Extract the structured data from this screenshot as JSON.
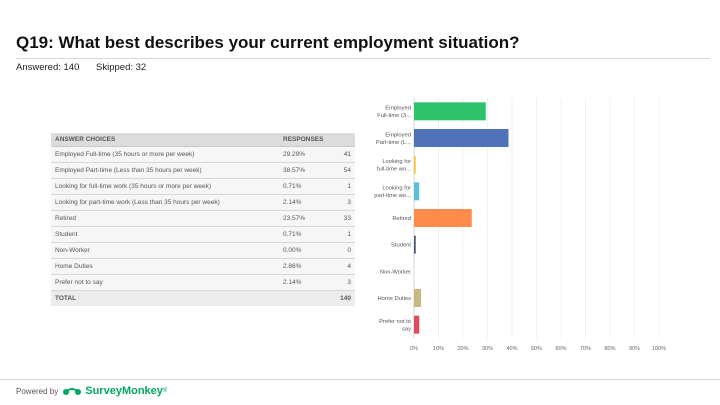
{
  "question": {
    "title": "Q19: What best describes your current employment situation?",
    "answered": "Answered: 140",
    "skipped": "Skipped: 32"
  },
  "table": {
    "headers": {
      "choices": "ANSWER CHOICES",
      "responses": "RESPONSES"
    },
    "rows": [
      {
        "label": "Employed Full-time (35 hours or more per week)",
        "pct": "29.29%",
        "count": "41"
      },
      {
        "label": "Employed Part-time (Less than 35 hours per week)",
        "pct": "38.57%",
        "count": "54"
      },
      {
        "label": "Looking for full-time work (35 hours or more per week)",
        "pct": "0.71%",
        "count": "1"
      },
      {
        "label": "Looking for part-time work (Less than 35 hours per week)",
        "pct": "2.14%",
        "count": "3"
      },
      {
        "label": "Retired",
        "pct": "23.57%",
        "count": "33"
      },
      {
        "label": "Student",
        "pct": "0.71%",
        "count": "1"
      },
      {
        "label": "Non-Worker",
        "pct": "0.00%",
        "count": "0"
      },
      {
        "label": "Home Duties",
        "pct": "2.86%",
        "count": "4"
      },
      {
        "label": "Prefer not to say",
        "pct": "2.14%",
        "count": "3"
      }
    ],
    "total_label": "TOTAL",
    "total_count": "140"
  },
  "chart_data": {
    "type": "bar",
    "orientation": "horizontal",
    "categories": [
      [
        "Employed",
        "Full-time (3..."
      ],
      [
        "Employed",
        "Part-time (L..."
      ],
      [
        "Looking for",
        "full-time wo..."
      ],
      [
        "Looking for",
        "part-time wo..."
      ],
      [
        "Retired"
      ],
      [
        "Student"
      ],
      [
        "Non-Worker"
      ],
      [
        "Home Duties"
      ],
      [
        "Prefer not to",
        "say"
      ]
    ],
    "values": [
      29.29,
      38.57,
      0.71,
      2.14,
      23.57,
      0.71,
      0.0,
      2.86,
      2.14
    ],
    "colors": [
      "#2dc26b",
      "#4f72b8",
      "#f4c842",
      "#5bc0de",
      "#ff8c4a",
      "#4a5a70",
      "#8a8a8a",
      "#c9b882",
      "#e04a5a"
    ],
    "xlim": [
      0,
      100
    ],
    "xticks": [
      "0%",
      "10%",
      "20%",
      "30%",
      "40%",
      "50%",
      "60%",
      "70%",
      "80%",
      "90%",
      "100%"
    ],
    "grid": true
  },
  "footer": {
    "powered_by": "Powered by",
    "brand": "SurveyMonkey",
    "brand_mark": "®",
    "brand_color": "#00a862"
  }
}
